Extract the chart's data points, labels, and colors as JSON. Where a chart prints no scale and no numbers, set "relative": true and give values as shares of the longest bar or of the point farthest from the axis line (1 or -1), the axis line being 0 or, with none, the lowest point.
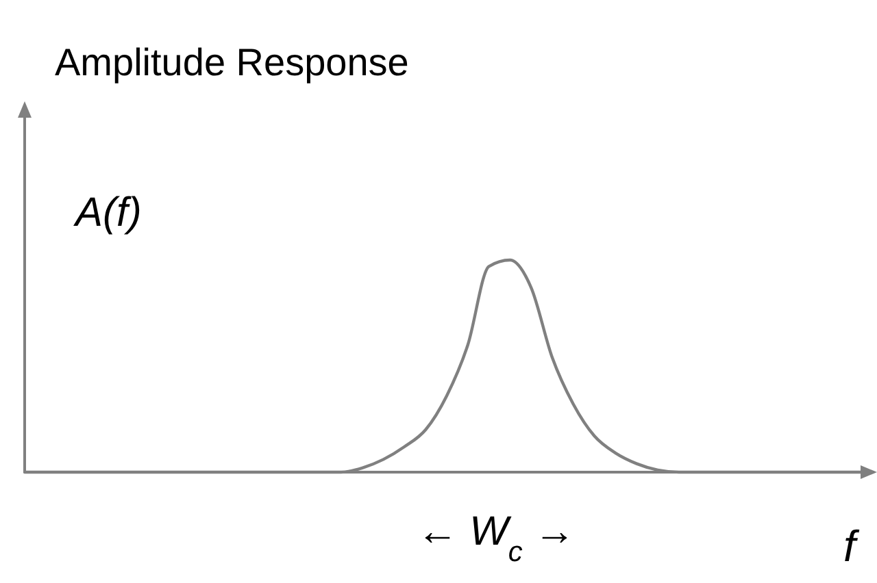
{
  "chart_data": {
    "type": "line",
    "title": "Amplitude Response",
    "xlabel": "f",
    "ylabel": "A(f)",
    "annotations": [
      "← W$_{c}$ →"
    ],
    "relative": true,
    "color": "#808080",
    "categories": [
      null,
      null,
      null,
      null,
      null,
      null,
      null,
      null,
      null,
      null,
      null,
      null,
      null,
      null,
      null,
      null,
      null,
      null,
      null,
      null,
      null,
      null,
      null,
      null,
      null,
      null,
      null,
      null,
      null,
      null,
      null,
      null,
      null,
      null,
      null,
      null,
      null,
      null,
      null,
      null,
      null
    ],
    "values": [
      0,
      0,
      0,
      0,
      0,
      0,
      0,
      0,
      0,
      0,
      0,
      0,
      0,
      0,
      0,
      0,
      0.02,
      0.06,
      0.12,
      0.2,
      0.36,
      0.6,
      0.97,
      1,
      0.87,
      0.54,
      0.32,
      0.17,
      0.09,
      0.04,
      0.01,
      0,
      0,
      0,
      0,
      0,
      0,
      0,
      0,
      0,
      0
    ]
  }
}
